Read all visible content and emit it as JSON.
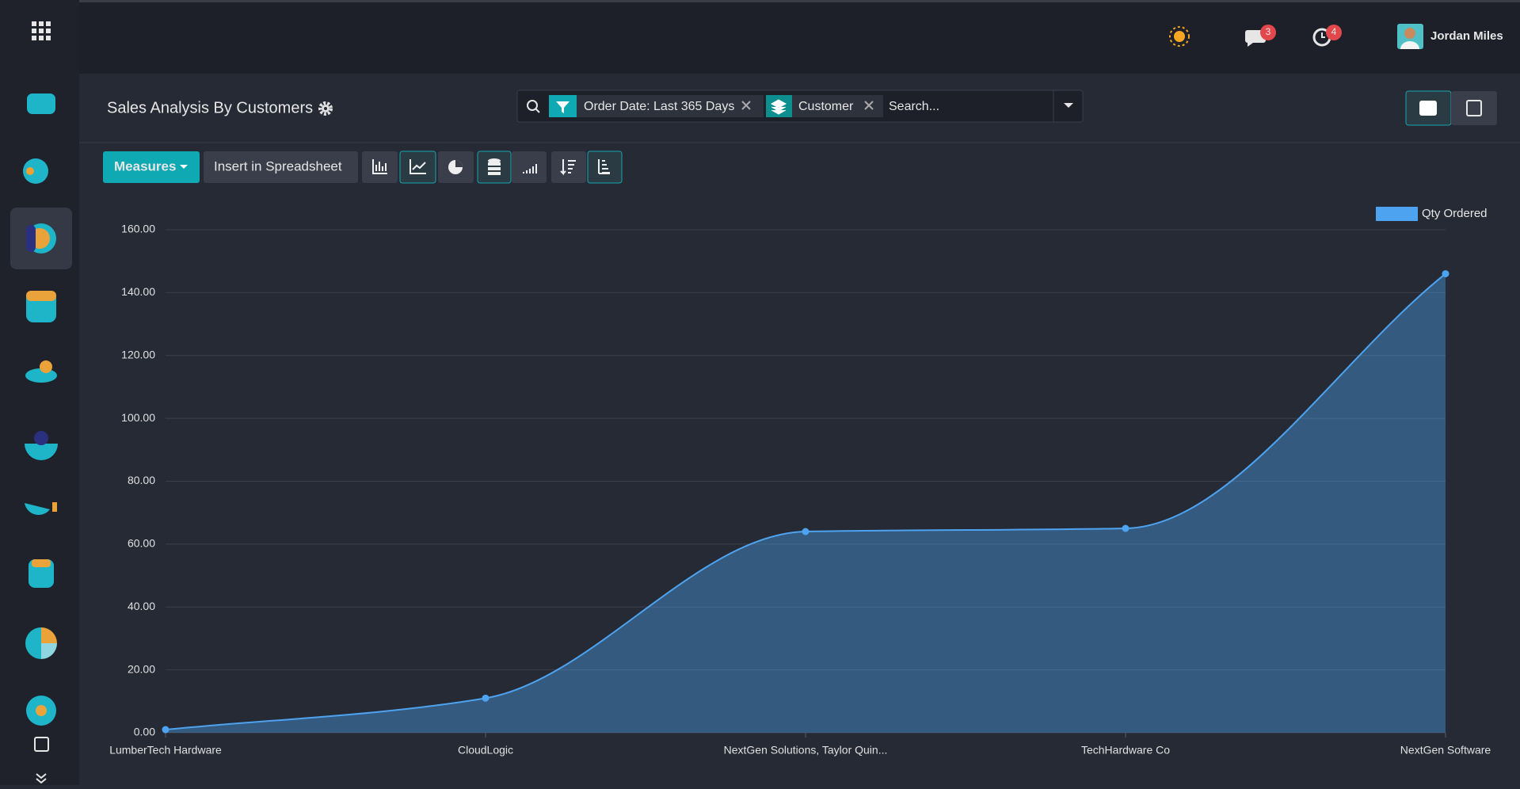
{
  "topbar": {
    "user": "Jordan Miles",
    "messages_badge": 3,
    "activities_badge": 4
  },
  "header": {
    "title": "Sales Analysis By Customers",
    "filters": [
      "Order Date: Last 365 Days",
      "Customer"
    ],
    "search_placeholder": "Search..."
  },
  "toolbar": {
    "measures": "Measures",
    "insert": "Insert in Spreadsheet"
  },
  "chart_data": {
    "type": "line",
    "area": true,
    "legend": "top-right",
    "grid": true,
    "categories": [
      "LumberTech Hardware",
      "CloudLogic",
      "NextGen Solutions, Taylor Quin...",
      "TechHardware Co",
      "NextGen Software"
    ],
    "series": [
      {
        "name": "Qty Ordered",
        "color": "#4ea3f0",
        "values": [
          1,
          11,
          64,
          65,
          146
        ]
      }
    ],
    "ylim": [
      0,
      160
    ],
    "yticks": [
      {
        "value": 0,
        "label": "0.00"
      },
      {
        "value": 20,
        "label": "20.00"
      },
      {
        "value": 40,
        "label": "40.00"
      },
      {
        "value": 60,
        "label": "60.00"
      },
      {
        "value": 80,
        "label": "80.00"
      },
      {
        "value": 100,
        "label": "100.00"
      },
      {
        "value": 120,
        "label": "120.00"
      },
      {
        "value": 140,
        "label": "140.00"
      },
      {
        "value": 160,
        "label": "160.00"
      }
    ]
  }
}
